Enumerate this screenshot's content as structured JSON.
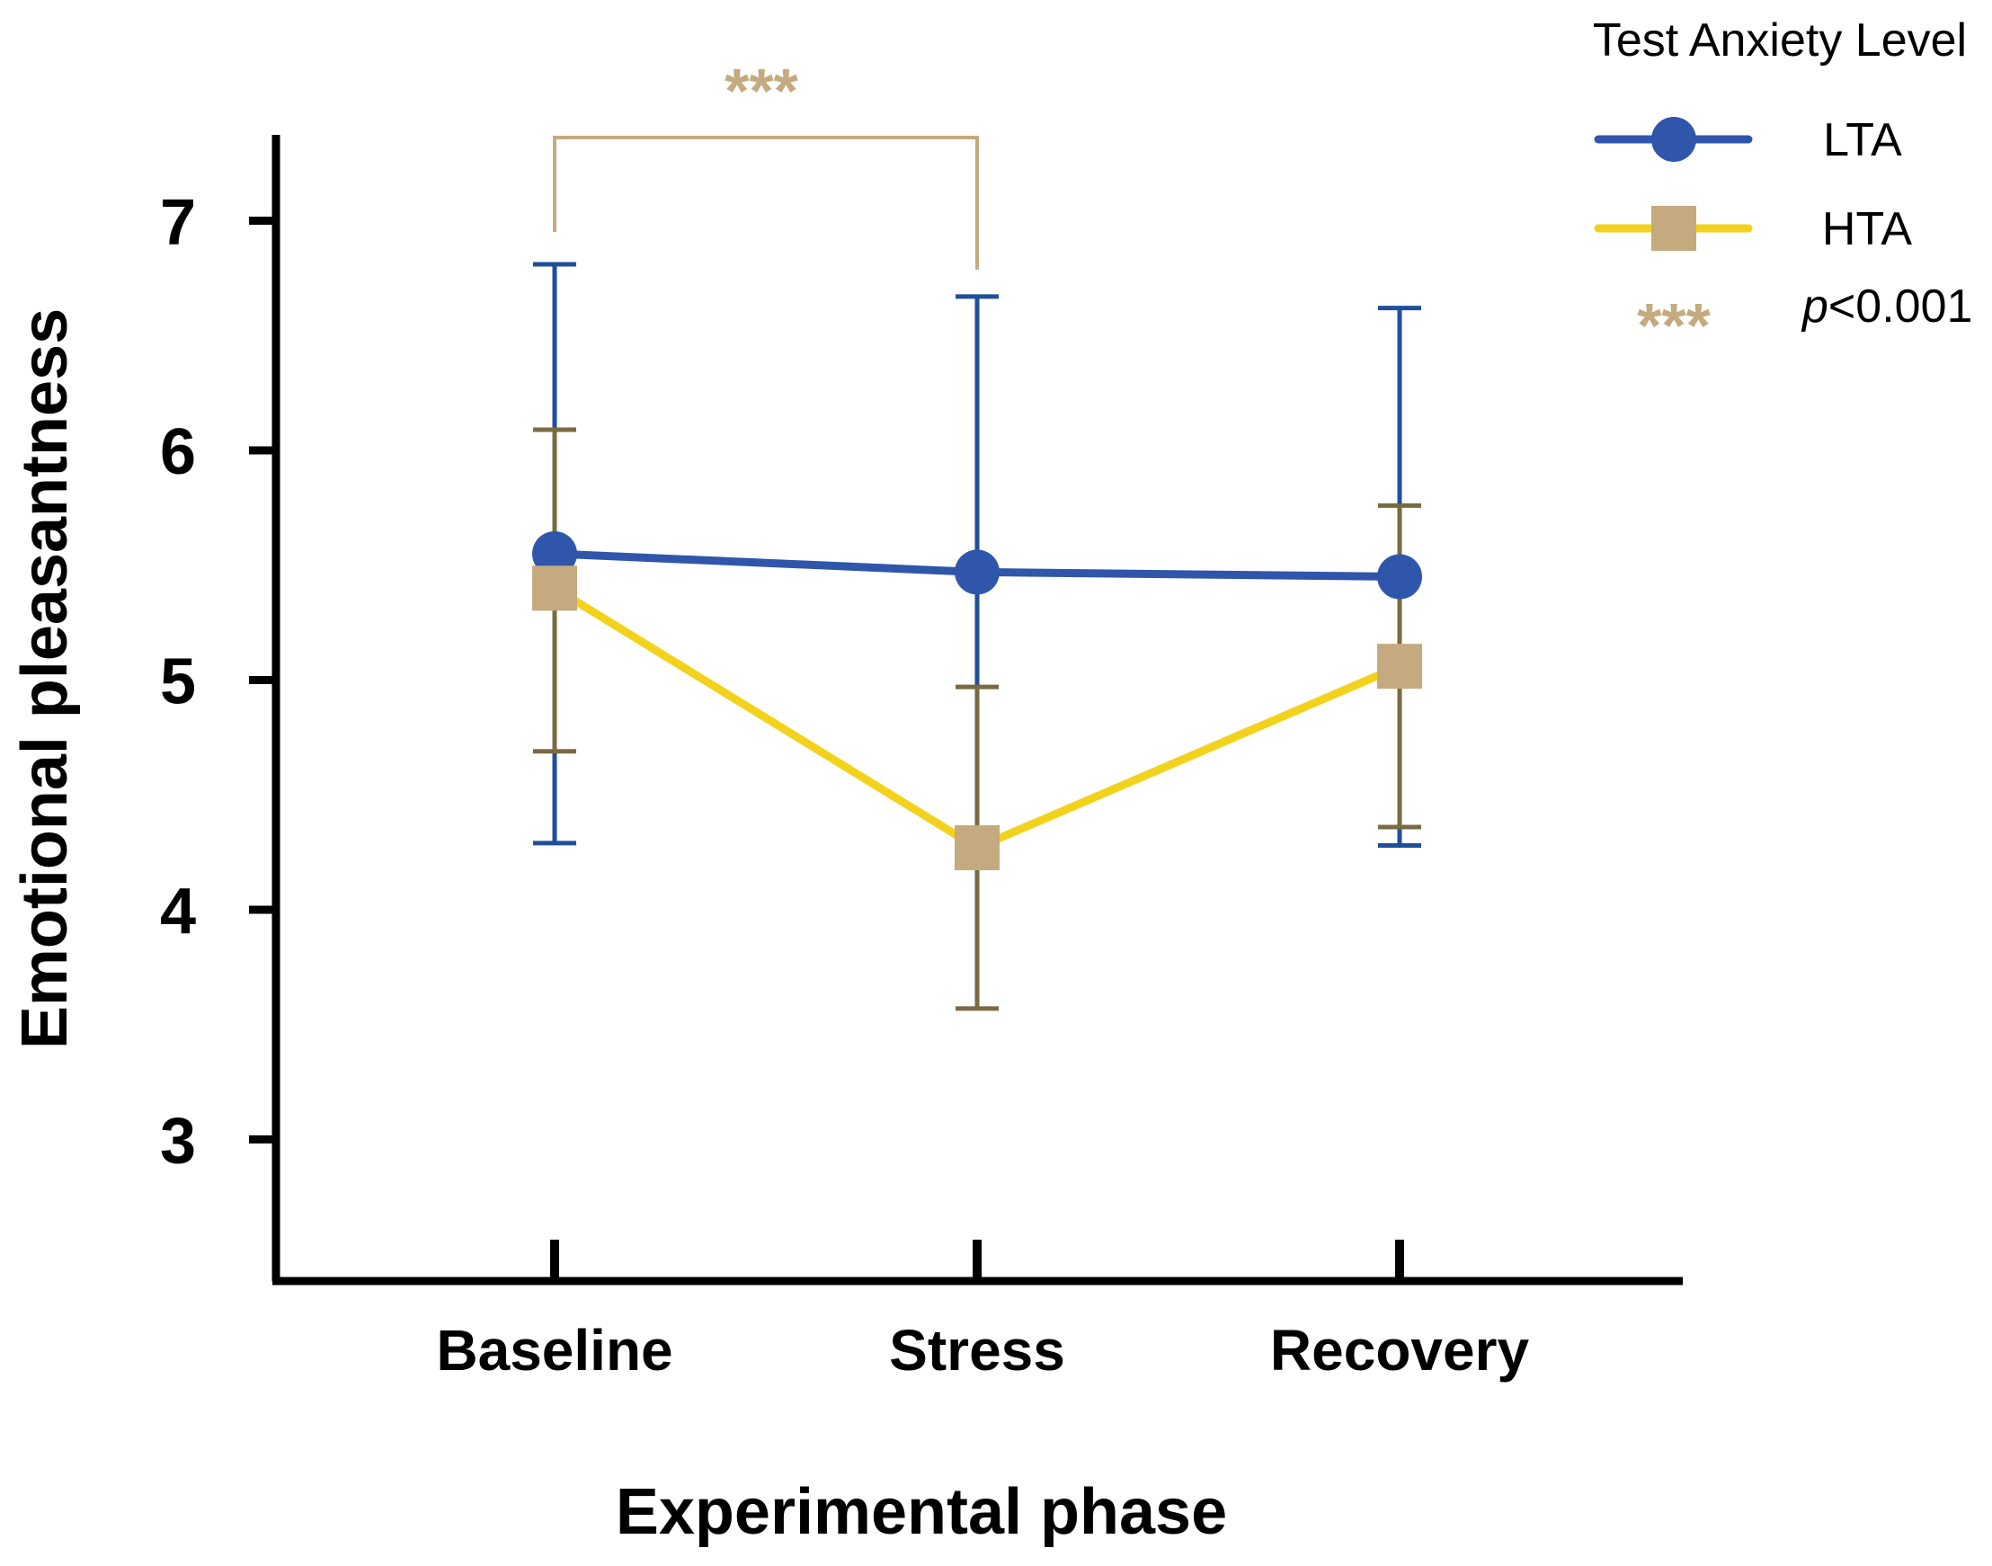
{
  "chart_data": {
    "type": "line",
    "title": "",
    "xlabel": "Experimental  phase",
    "ylabel": "Emotional  pleasantness",
    "categories": [
      "Baseline",
      "Stress",
      "Recovery"
    ],
    "ylim": [
      2.5,
      7.4
    ],
    "yticks": [
      3,
      4,
      5,
      6,
      7
    ],
    "series": [
      {
        "name": "LTA",
        "marker": "circle",
        "line_color": "#2f56ab",
        "marker_color": "#2f56ab",
        "errorbar_color": "#1f4f9a",
        "values": [
          5.55,
          5.47,
          5.45
        ],
        "err_high": [
          6.81,
          6.67,
          6.62
        ],
        "err_low": [
          4.29,
          4.29,
          4.28
        ]
      },
      {
        "name": "HTA",
        "marker": "square",
        "line_color": "#f2d21c",
        "marker_color": "#c4aa7e",
        "errorbar_color": "#7a6a42",
        "values": [
          5.4,
          4.27,
          5.06
        ],
        "err_high": [
          6.09,
          4.97,
          5.76
        ],
        "err_low": [
          4.69,
          3.57,
          4.36
        ]
      }
    ],
    "significance": {
      "from": "Baseline",
      "to": "Stress",
      "label": "***",
      "color": "#c4aa7e"
    },
    "legend": {
      "title": "Test Anxiety Level",
      "placement": "top-right",
      "entries": [
        "LTA",
        "HTA"
      ],
      "sig_symbol": "***",
      "sig_text_italic": "p",
      "sig_text_rest": "<0.001"
    }
  }
}
